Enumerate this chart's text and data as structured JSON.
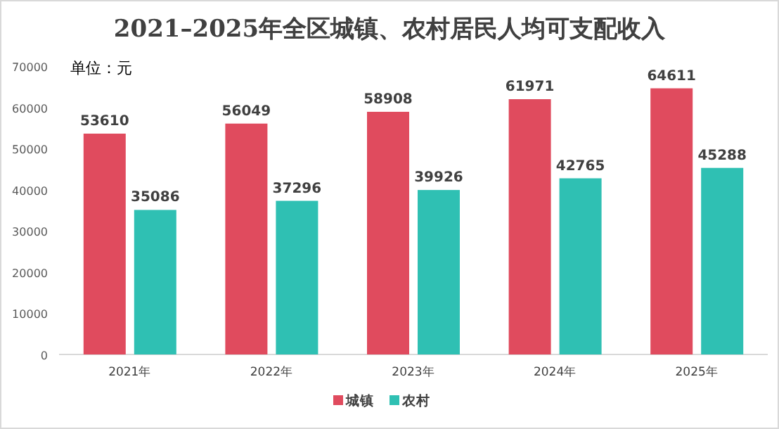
{
  "chart_data": {
    "type": "bar",
    "title": "2021–2025年全区城镇、农村居民人均可支配收入",
    "annotations": [
      "单位：元"
    ],
    "categories": [
      "2021年",
      "2022年",
      "2023年",
      "2024年",
      "2025年"
    ],
    "series": [
      {
        "name": "城镇",
        "color": "#e04b5e",
        "values": [
          53610,
          56049,
          58908,
          61971,
          64611
        ]
      },
      {
        "name": "农村",
        "color": "#2fc0b3",
        "values": [
          35086,
          37296,
          39926,
          42765,
          45288
        ]
      }
    ],
    "ylim": [
      0,
      70000
    ],
    "yticks": [
      0,
      10000,
      20000,
      30000,
      40000,
      50000,
      60000,
      70000
    ],
    "grid": false,
    "legend": "bottom",
    "data_labels": true
  }
}
